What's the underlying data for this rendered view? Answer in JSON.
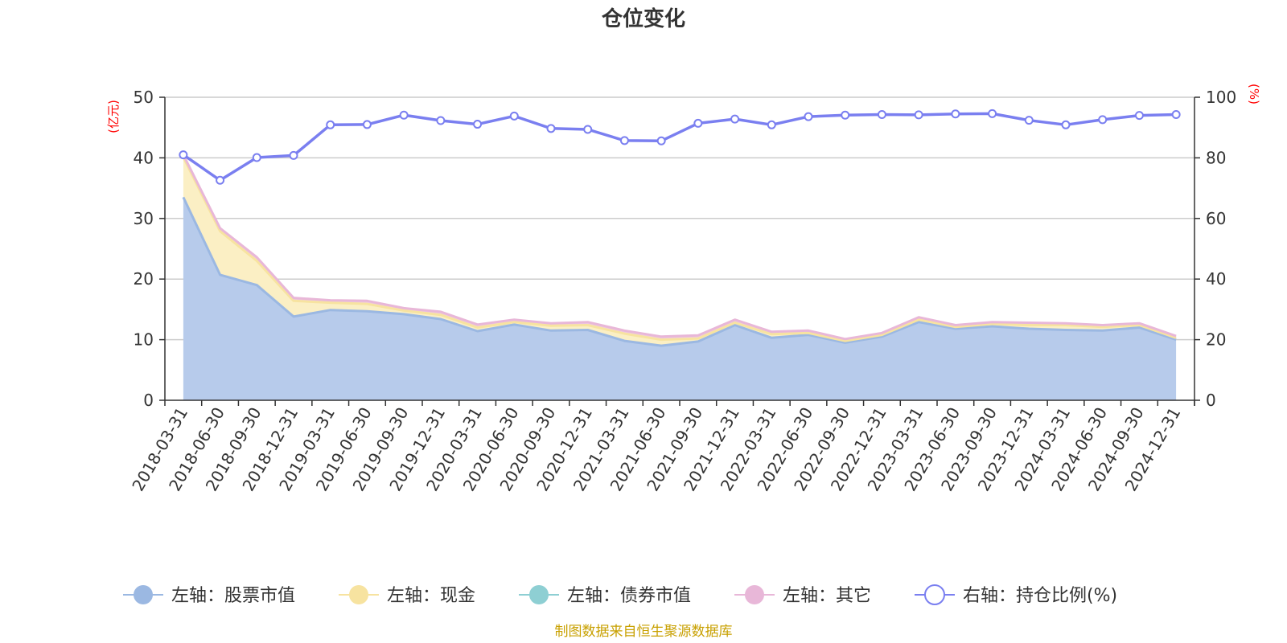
{
  "chart_data": {
    "type": "area",
    "title": "仓位变化",
    "left_unit": "(亿元)",
    "right_unit": "(%)",
    "left_ylim": [
      0,
      50
    ],
    "left_ticks": [
      "0",
      "10",
      "20",
      "30",
      "40",
      "50"
    ],
    "right_ylim": [
      0,
      100
    ],
    "right_ticks": [
      "0",
      "20",
      "40",
      "60",
      "80",
      "100"
    ],
    "grid": true,
    "legend_position": "bottom",
    "categories": [
      "2018-03-31",
      "2018-06-30",
      "2018-09-30",
      "2018-12-31",
      "2019-03-31",
      "2019-06-30",
      "2019-09-30",
      "2019-12-31",
      "2020-03-31",
      "2020-06-30",
      "2020-09-30",
      "2020-12-31",
      "2021-03-31",
      "2021-06-30",
      "2021-09-30",
      "2021-12-31",
      "2022-03-31",
      "2022-06-30",
      "2022-09-30",
      "2022-12-31",
      "2023-03-31",
      "2023-06-30",
      "2023-09-30",
      "2023-12-31",
      "2024-03-31",
      "2024-06-30",
      "2024-09-30",
      "2024-12-31"
    ],
    "series": [
      {
        "name": "左轴：股票市值",
        "axis": "left",
        "color": "#9bb8e2",
        "fill": "#b7cbeb",
        "values": [
          33.5,
          20.7,
          19.0,
          13.8,
          14.9,
          14.7,
          14.2,
          13.4,
          11.4,
          12.5,
          11.5,
          11.6,
          9.8,
          9.0,
          9.7,
          12.4,
          10.3,
          10.8,
          9.5,
          10.5,
          12.9,
          11.8,
          12.2,
          11.8,
          11.6,
          11.5,
          12.0,
          10.0
        ]
      },
      {
        "name": "左轴：现金",
        "axis": "left",
        "color": "#f7e3a0",
        "fill": "#fbefc4",
        "values": [
          6.6,
          7.2,
          4.0,
          2.6,
          1.2,
          1.2,
          0.6,
          0.7,
          0.6,
          0.4,
          0.8,
          0.8,
          1.2,
          1.0,
          0.5,
          0.4,
          0.6,
          0.3,
          0.3,
          0.3,
          0.4,
          0.3,
          0.4,
          0.6,
          0.8,
          0.6,
          0.4,
          0.3
        ]
      },
      {
        "name": "左轴：债券市值",
        "axis": "left",
        "color": "#8ecfd3",
        "fill": "#a8dadd",
        "values": [
          0,
          0,
          0,
          0,
          0,
          0,
          0,
          0,
          0,
          0,
          0,
          0,
          0,
          0,
          0,
          0,
          0,
          0,
          0,
          0,
          0,
          0,
          0,
          0,
          0,
          0,
          0,
          0
        ]
      },
      {
        "name": "左轴：其它",
        "axis": "left",
        "color": "#e8b7d8",
        "fill": "#efc9e2",
        "values": [
          0.4,
          0.5,
          0.6,
          0.5,
          0.4,
          0.5,
          0.4,
          0.5,
          0.5,
          0.4,
          0.4,
          0.5,
          0.5,
          0.5,
          0.5,
          0.5,
          0.4,
          0.4,
          0.3,
          0.3,
          0.4,
          0.3,
          0.3,
          0.4,
          0.3,
          0.3,
          0.3,
          0.3
        ]
      },
      {
        "name": "右轴：持仓比例(%)",
        "axis": "right",
        "color": "#7a7ff0",
        "values": [
          81.0,
          72.6,
          80.1,
          80.8,
          90.9,
          91.0,
          94.1,
          92.3,
          91.1,
          93.8,
          89.7,
          89.4,
          85.7,
          85.6,
          91.4,
          92.8,
          90.9,
          93.6,
          94.1,
          94.3,
          94.2,
          94.5,
          94.6,
          92.4,
          90.9,
          92.6,
          94.0,
          94.3
        ]
      }
    ],
    "source": "制图数据来自恒生聚源数据库"
  }
}
